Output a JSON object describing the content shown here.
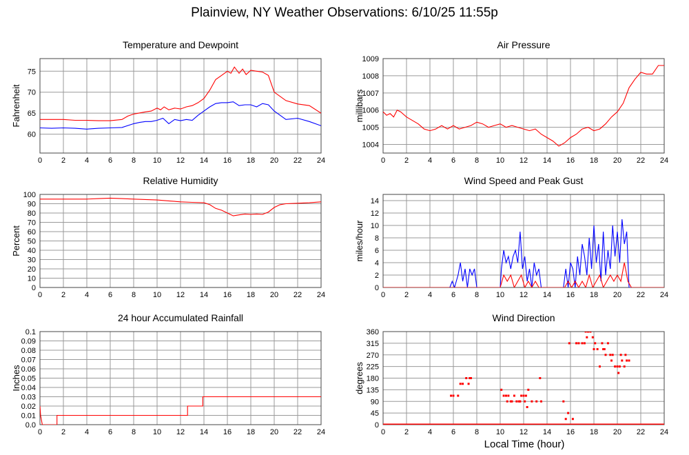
{
  "title": "Plainview, NY Weather Observations: 6/10/25 11:55p",
  "xaxis_title": "Local Time (hour)",
  "colors": {
    "red": "#ff0000",
    "blue": "#0000ff",
    "grid": "#999999",
    "frame": "#444444"
  },
  "chart_data": [
    {
      "id": "temp",
      "type": "line",
      "title": "Temperature and Dewpoint",
      "ylabel": "Fahrenheit",
      "xlim": [
        0,
        24
      ],
      "ylim": [
        55.5,
        78
      ],
      "xticks": [
        "0",
        "2",
        "4",
        "6",
        "8",
        "10",
        "12",
        "14",
        "16",
        "18",
        "20",
        "22",
        "24"
      ],
      "yticks": [
        "60",
        "65",
        "70",
        "75"
      ],
      "series": [
        {
          "color": "#ff0000",
          "x": [
            0,
            1,
            2,
            3,
            4,
            5,
            6,
            7,
            7.5,
            8,
            9,
            9.5,
            10,
            10.3,
            10.6,
            11,
            11.5,
            12,
            12.5,
            13,
            13.5,
            14,
            14.5,
            15,
            15.5,
            16,
            16.3,
            16.6,
            17,
            17.3,
            17.6,
            18,
            18.5,
            19,
            19.5,
            20,
            21,
            22,
            23,
            24
          ],
          "y": [
            63.5,
            63.5,
            63.5,
            63.3,
            63.3,
            63.2,
            63.2,
            63.5,
            64.3,
            64.8,
            65.3,
            65.5,
            66.2,
            65.8,
            66.5,
            65.8,
            66.2,
            66,
            66.5,
            66.8,
            67.5,
            68.5,
            70.5,
            73,
            74,
            75,
            74.5,
            76,
            74.5,
            75.5,
            74.2,
            75.2,
            75,
            74.8,
            74,
            70,
            68,
            67.2,
            66.8,
            65
          ]
        },
        {
          "color": "#0000ff",
          "x": [
            0,
            1,
            2,
            3,
            4,
            5,
            6,
            7,
            8,
            8.5,
            9,
            9.5,
            10,
            10.5,
            11,
            11.5,
            12,
            12.5,
            13,
            13.5,
            14,
            14.5,
            15,
            15.5,
            16,
            16.5,
            17,
            17.5,
            18,
            18.5,
            19,
            19.5,
            20,
            20.5,
            21,
            22,
            23,
            24
          ],
          "y": [
            61.5,
            61.4,
            61.5,
            61.4,
            61.2,
            61.4,
            61.5,
            61.6,
            62.5,
            62.8,
            63,
            63,
            63.3,
            63.8,
            62.5,
            63.5,
            63.2,
            63.5,
            63.3,
            64.5,
            65.5,
            66.5,
            67.3,
            67.5,
            67.5,
            67.7,
            66.8,
            67,
            67,
            66.5,
            67.3,
            67,
            65.5,
            64.5,
            63.5,
            63.8,
            63,
            62
          ]
        }
      ]
    },
    {
      "id": "pressure",
      "type": "line",
      "title": "Air Pressure",
      "ylabel": "millibars",
      "xlim": [
        0,
        24
      ],
      "ylim": [
        1003.5,
        1009
      ],
      "xticks": [
        "0",
        "2",
        "4",
        "6",
        "8",
        "10",
        "12",
        "14",
        "16",
        "18",
        "20",
        "22",
        "24"
      ],
      "yticks": [
        "1004",
        "1005",
        "1006",
        "1007",
        "1008",
        "1009"
      ],
      "series": [
        {
          "color": "#ff0000",
          "x": [
            0,
            0.3,
            0.6,
            0.9,
            1.2,
            1.5,
            2,
            2.5,
            3,
            3.5,
            4,
            4.5,
            5,
            5.5,
            6,
            6.5,
            7,
            7.5,
            8,
            8.5,
            9,
            9.5,
            10,
            10.5,
            11,
            11.5,
            12,
            12.5,
            13,
            13.5,
            14,
            14.5,
            15,
            15.5,
            16,
            16.5,
            17,
            17.5,
            18,
            18.5,
            19,
            19.5,
            20,
            20.5,
            21,
            21.5,
            22,
            22.5,
            23,
            23.5,
            24
          ],
          "y": [
            1005.9,
            1005.7,
            1005.8,
            1005.6,
            1006,
            1005.9,
            1005.6,
            1005.4,
            1005.2,
            1004.9,
            1004.8,
            1004.9,
            1005.1,
            1004.9,
            1005.1,
            1004.9,
            1005,
            1005.1,
            1005.3,
            1005.2,
            1005,
            1005.1,
            1005.2,
            1005,
            1005.1,
            1005,
            1004.9,
            1004.8,
            1004.9,
            1004.6,
            1004.4,
            1004.2,
            1003.9,
            1004.1,
            1004.4,
            1004.6,
            1004.9,
            1005,
            1004.8,
            1004.9,
            1005.2,
            1005.6,
            1005.9,
            1006.4,
            1007.3,
            1007.8,
            1008.2,
            1008.1,
            1008.1,
            1008.6,
            1008.6
          ]
        }
      ]
    },
    {
      "id": "humidity",
      "type": "line",
      "title": "Relative Humidity",
      "ylabel": "Percent",
      "xlim": [
        0,
        24
      ],
      "ylim": [
        0,
        100
      ],
      "xticks": [
        "0",
        "2",
        "4",
        "6",
        "8",
        "10",
        "12",
        "14",
        "16",
        "18",
        "20",
        "22",
        "24"
      ],
      "yticks": [
        "0",
        "10",
        "20",
        "30",
        "40",
        "50",
        "60",
        "70",
        "80",
        "90",
        "100"
      ],
      "series": [
        {
          "color": "#ff0000",
          "x": [
            0,
            2,
            4,
            5,
            6,
            7,
            8,
            9,
            10,
            11,
            12,
            13,
            14,
            14.5,
            15,
            15.5,
            16,
            16.5,
            17,
            17.5,
            18,
            18.5,
            19,
            19.5,
            20,
            20.5,
            21,
            22,
            23,
            24
          ],
          "y": [
            95,
            95,
            95,
            95.5,
            96,
            95.5,
            95,
            94.5,
            94,
            93,
            92,
            91.5,
            91,
            89,
            85,
            83,
            80,
            77,
            78,
            79,
            78.5,
            79,
            78.5,
            81,
            86,
            89,
            90,
            90.5,
            91,
            92
          ]
        }
      ]
    },
    {
      "id": "wind",
      "type": "line",
      "title": "Wind Speed and Peak Gust",
      "ylabel": "miles/hour",
      "xlim": [
        0,
        24
      ],
      "ylim": [
        0,
        15
      ],
      "xticks": [
        "0",
        "2",
        "4",
        "6",
        "8",
        "10",
        "12",
        "14",
        "16",
        "18",
        "20",
        "22",
        "24"
      ],
      "yticks": [
        "0",
        "2",
        "4",
        "6",
        "8",
        "10",
        "12",
        "14"
      ],
      "series": [
        {
          "color": "#0000ff",
          "x": [
            0,
            5.7,
            5.9,
            6.1,
            6.4,
            6.6,
            6.8,
            7,
            7.2,
            7.4,
            7.6,
            7.8,
            8,
            10,
            10.1,
            10.3,
            10.5,
            10.7,
            10.9,
            11.1,
            11.3,
            11.5,
            11.7,
            11.9,
            12.1,
            12.3,
            12.5,
            12.7,
            12.9,
            13.1,
            13.3,
            13.5,
            13.7,
            15.4,
            15.6,
            15.8,
            16,
            16.2,
            16.4,
            16.6,
            16.8,
            17,
            17.2,
            17.4,
            17.6,
            17.8,
            18,
            18.2,
            18.4,
            18.6,
            18.8,
            19,
            19.2,
            19.4,
            19.6,
            19.8,
            20,
            20.2,
            20.4,
            20.6,
            20.8,
            21,
            24
          ],
          "y": [
            0,
            0,
            1,
            0,
            2,
            4,
            1,
            3,
            0,
            3,
            2,
            3,
            0,
            0,
            3,
            6,
            4,
            5,
            3,
            5,
            6,
            4,
            9,
            3,
            5,
            1,
            3,
            0,
            4,
            2,
            3,
            0,
            0,
            0,
            3,
            0,
            4,
            3,
            0,
            5,
            2,
            7,
            5,
            2,
            8,
            3,
            10,
            4,
            7,
            1,
            9,
            2,
            6,
            3,
            10,
            5,
            9,
            4,
            11,
            7,
            9,
            0,
            0
          ]
        },
        {
          "color": "#ff0000",
          "x": [
            0,
            10,
            10.3,
            10.6,
            10.9,
            11.2,
            11.5,
            11.8,
            12.1,
            12.4,
            12.7,
            13,
            13.3,
            15.5,
            15.8,
            16.1,
            16.4,
            16.7,
            17,
            17.3,
            17.6,
            17.9,
            18.2,
            18.5,
            18.8,
            19.1,
            19.4,
            19.7,
            20,
            20.3,
            20.6,
            20.9,
            21.2,
            24
          ],
          "y": [
            0,
            0,
            2,
            1,
            2,
            0,
            1,
            2,
            0,
            1,
            0,
            1,
            0,
            0,
            1,
            0,
            1,
            0,
            1,
            0,
            2,
            0,
            1,
            2,
            0,
            1,
            2,
            1,
            2,
            1,
            4,
            1,
            0,
            0
          ]
        }
      ]
    },
    {
      "id": "rain",
      "type": "line",
      "title": "24 hour Accumulated Rainfall",
      "ylabel": "Inches",
      "xlim": [
        0,
        24
      ],
      "ylim": [
        0,
        0.1
      ],
      "xticks": [
        "0",
        "2",
        "4",
        "6",
        "8",
        "10",
        "12",
        "14",
        "16",
        "18",
        "20",
        "22",
        "24"
      ],
      "yticks": [
        "0.0",
        "0.01",
        "0.02",
        "0.03",
        "0.04",
        "0.05",
        "0.06",
        "0.07",
        "0.08",
        "0.09",
        "0.1"
      ],
      "series": [
        {
          "color": "#ff0000",
          "x": [
            0,
            0.05,
            0.2,
            0.3,
            1.45,
            1.45,
            12.6,
            12.6,
            13.9,
            13.9,
            24
          ],
          "y": [
            0.02,
            0.01,
            0,
            0,
            0,
            0.01,
            0.01,
            0.02,
            0.02,
            0.03,
            0.03
          ]
        }
      ]
    },
    {
      "id": "direction",
      "type": "scatter",
      "title": "Wind Direction",
      "ylabel": "degrees",
      "xlim": [
        0,
        24
      ],
      "ylim": [
        0,
        360
      ],
      "xticks": [
        "0",
        "2",
        "4",
        "6",
        "8",
        "10",
        "12",
        "14",
        "16",
        "18",
        "20",
        "22",
        "24"
      ],
      "yticks": [
        "0",
        "45",
        "90",
        "135",
        "180",
        "225",
        "270",
        "315",
        "360"
      ],
      "series": [
        {
          "color": "#ff0000",
          "x": [
            5.8,
            6,
            6.4,
            6.6,
            6.8,
            7.1,
            7.3,
            7.5,
            7.4,
            10.1,
            10.3,
            10.5,
            10.6,
            10.7,
            10.9,
            11,
            11.2,
            11.4,
            11.6,
            11.7,
            11.8,
            12,
            12.1,
            12.2,
            12.4,
            12.3,
            12.7,
            13.1,
            13.4,
            13.5,
            15.4,
            15.6,
            15.9,
            15.8,
            16.2,
            16.5,
            16.7,
            17,
            17.2,
            17.3,
            17.5,
            17.7,
            17.4,
            17.9,
            18,
            18.1,
            18.3,
            18.5,
            18.7,
            18.8,
            18.9,
            19,
            19.2,
            19.4,
            19.5,
            19.6,
            19.8,
            20,
            20.1,
            20.2,
            20.3,
            20.4,
            20.6,
            20.7,
            20.8,
            21
          ],
          "y": [
            112,
            112,
            112,
            158,
            158,
            180,
            158,
            180,
            180,
            135,
            112,
            112,
            90,
            112,
            90,
            90,
            112,
            90,
            90,
            90,
            112,
            112,
            90,
            112,
            135,
            68,
            90,
            90,
            180,
            90,
            90,
            22,
            315,
            45,
            22,
            315,
            315,
            315,
            315,
            360,
            360,
            360,
            338,
            338,
            292,
            315,
            292,
            225,
            315,
            292,
            292,
            270,
            315,
            270,
            248,
            270,
            225,
            225,
            200,
            225,
            270,
            248,
            225,
            270,
            248,
            248
          ]
        }
      ]
    }
  ]
}
